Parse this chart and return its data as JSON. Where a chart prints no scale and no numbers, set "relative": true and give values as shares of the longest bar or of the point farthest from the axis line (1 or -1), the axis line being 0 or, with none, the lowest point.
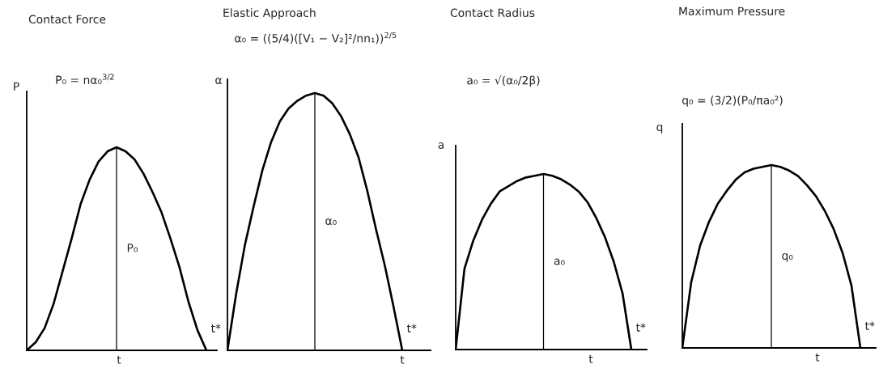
{
  "chart_data": [
    {
      "type": "line",
      "title": "Contact Force",
      "subtitle": "P₀ = nα₀$^{3/2}$",
      "xlabel": "t",
      "ylabel": "P",
      "relative": true,
      "categories": [
        null,
        null,
        null,
        null,
        null,
        null,
        null,
        null,
        null,
        null,
        null,
        null,
        null,
        null,
        null,
        null,
        null,
        null,
        null,
        null,
        null
      ],
      "series": [
        {
          "color": "#000000",
          "values": [
            0,
            0.04,
            0.11,
            0.23,
            0.39,
            0.55,
            0.72,
            0.84,
            0.93,
            0.98,
            1,
            0.98,
            0.94,
            0.87,
            0.78,
            0.68,
            0.55,
            0.41,
            0.24,
            0.1,
            0
          ]
        }
      ],
      "annotations": [
        "P₀",
        "t*"
      ]
    },
    {
      "type": "line",
      "title": "Elastic Approach",
      "subtitle": "α₀ = ((5/4)([V₁ − V₂]²/nn₁))$^{2/5}$",
      "xlabel": "t",
      "ylabel": "α",
      "relative": true,
      "categories": [
        null,
        null,
        null,
        null,
        null,
        null,
        null,
        null,
        null,
        null,
        null,
        null,
        null,
        null,
        null,
        null,
        null,
        null,
        null,
        null,
        null
      ],
      "series": [
        {
          "color": "#000000",
          "values": [
            0,
            0.22,
            0.41,
            0.56,
            0.7,
            0.81,
            0.89,
            0.94,
            0.97,
            0.99,
            1,
            0.99,
            0.96,
            0.91,
            0.84,
            0.75,
            0.62,
            0.47,
            0.33,
            0.17,
            0
          ]
        }
      ],
      "annotations": [
        "α₀",
        "t*"
      ]
    },
    {
      "type": "line",
      "title": "Contact Radius",
      "subtitle": "a₀ = √(α₀/2β)",
      "xlabel": "t",
      "ylabel": "a",
      "relative": true,
      "categories": [
        null,
        null,
        null,
        null,
        null,
        null,
        null,
        null,
        null,
        null,
        null,
        null,
        null,
        null,
        null,
        null,
        null,
        null,
        null,
        null,
        null
      ],
      "series": [
        {
          "color": "#000000",
          "values": [
            0,
            0.46,
            0.62,
            0.74,
            0.83,
            0.9,
            0.93,
            0.96,
            0.98,
            0.99,
            1,
            0.99,
            0.97,
            0.94,
            0.9,
            0.84,
            0.75,
            0.64,
            0.5,
            0.32,
            0
          ]
        }
      ],
      "annotations": [
        "a₀",
        "t*"
      ]
    },
    {
      "type": "line",
      "title": "Maximum Pressure",
      "subtitle": "q₀ = (3/2)(P₀/πa₀²)",
      "xlabel": "t",
      "ylabel": "q",
      "relative": true,
      "categories": [
        null,
        null,
        null,
        null,
        null,
        null,
        null,
        null,
        null,
        null,
        null,
        null,
        null,
        null,
        null,
        null,
        null,
        null,
        null,
        null,
        null
      ],
      "series": [
        {
          "color": "#000000",
          "values": [
            0,
            0.36,
            0.56,
            0.69,
            0.79,
            0.86,
            0.92,
            0.96,
            0.98,
            0.99,
            1,
            0.99,
            0.97,
            0.94,
            0.89,
            0.83,
            0.75,
            0.65,
            0.52,
            0.34,
            0
          ]
        }
      ],
      "annotations": [
        "q₀",
        "t*"
      ]
    }
  ]
}
